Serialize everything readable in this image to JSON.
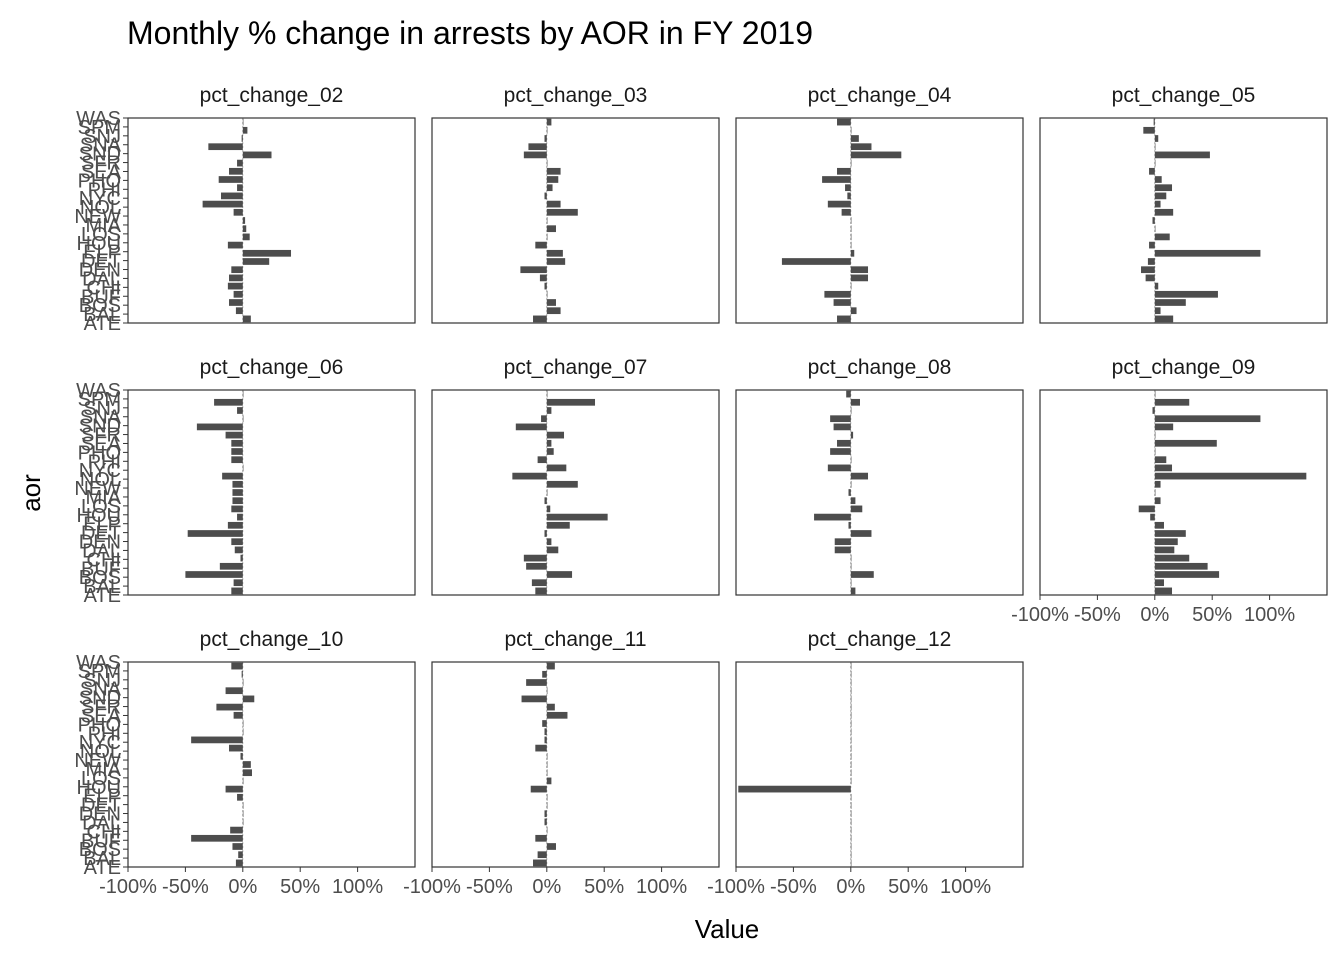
{
  "chart_data": {
    "type": "bar",
    "orientation": "horizontal",
    "title": "Monthly % change in arrests by AOR in FY 2019",
    "xlabel": "Value",
    "ylabel": "aor",
    "xlim": [
      -1.0,
      1.5
    ],
    "x_ticks": [
      -1,
      -0.5,
      0,
      0.5,
      1
    ],
    "x_tick_labels": [
      "-100%",
      "-50%",
      "0%",
      "50%",
      "100%"
    ],
    "bar_color": "#4d4d4d",
    "categories": [
      "ATL",
      "BAL",
      "BOS",
      "BUF",
      "CHI",
      "DAL",
      "DEN",
      "DET",
      "ELP",
      "HOU",
      "LOS",
      "MIA",
      "NEW",
      "NOL",
      "NYC",
      "PHI",
      "PHO",
      "SEA",
      "SFR",
      "SLC",
      "SNA",
      "SND",
      "SNJ",
      "SPM",
      "WAS"
    ],
    "y_tick_labels": [
      "WAS",
      "SPM",
      "SNJ",
      "SNA",
      "SND",
      "SLC",
      "SFR",
      "SEA",
      "PHO",
      "PHI",
      "NYC",
      "NOL",
      "NEW",
      "MIA",
      "LOS",
      "HOU",
      "ELP",
      "DET",
      "DEN",
      "DAL",
      "CHI",
      "BUF",
      "BOS",
      "BAL",
      "ATL"
    ],
    "y_tick_labels_drawn": [
      "WAS",
      "SPM",
      "SNJ",
      "SNA",
      "SND",
      "SFR",
      "SEA",
      "PHO",
      "PHI",
      "NYC",
      "NOL",
      "NEW",
      "MIA",
      "LOS",
      "HOU",
      "ELP",
      "DET",
      "DEN",
      "DAL",
      "CHI",
      "BUF",
      "BOS",
      "BAL",
      "ATE"
    ],
    "panels": [
      {
        "name": "pct_change_02",
        "values": [
          0.07,
          -0.06,
          -0.12,
          -0.08,
          -0.13,
          -0.12,
          -0.1,
          0.23,
          0.42,
          -0.13,
          0.06,
          0.03,
          0.02,
          -0.08,
          -0.35,
          -0.19,
          -0.05,
          -0.21,
          -0.12,
          -0.05,
          0.25,
          -0.3,
          -0.01,
          0.04,
          0.0
        ]
      },
      {
        "name": "pct_change_03",
        "values": [
          -0.12,
          0.12,
          0.08,
          0.0,
          -0.02,
          -0.06,
          -0.23,
          0.16,
          0.14,
          -0.1,
          0.0,
          0.08,
          0.0,
          0.27,
          0.12,
          -0.02,
          0.05,
          0.1,
          0.12,
          0.0,
          -0.2,
          -0.16,
          -0.02,
          0.0,
          0.04
        ]
      },
      {
        "name": "pct_change_04",
        "values": [
          -0.12,
          0.05,
          -0.15,
          -0.23,
          0.0,
          0.15,
          0.15,
          -0.6,
          0.03,
          0.0,
          0.0,
          0.0,
          0.0,
          -0.08,
          -0.2,
          -0.03,
          -0.05,
          -0.25,
          -0.12,
          0.0,
          0.44,
          0.18,
          0.07,
          0.0,
          -0.12
        ]
      },
      {
        "name": "pct_change_05",
        "values": [
          0.16,
          0.05,
          0.27,
          0.55,
          0.03,
          -0.08,
          -0.12,
          -0.06,
          0.92,
          -0.05,
          0.13,
          0.0,
          -0.02,
          0.16,
          0.05,
          0.1,
          0.15,
          0.06,
          -0.05,
          0.0,
          0.48,
          0.0,
          0.03,
          -0.1,
          -0.01
        ]
      },
      {
        "name": "pct_change_06",
        "values": [
          -0.1,
          -0.08,
          -0.5,
          -0.2,
          -0.02,
          -0.07,
          -0.1,
          -0.48,
          -0.13,
          -0.05,
          -0.1,
          -0.09,
          -0.09,
          -0.09,
          -0.18,
          0.0,
          -0.1,
          -0.1,
          -0.1,
          -0.15,
          -0.4,
          0.0,
          -0.05,
          -0.25,
          0.0
        ]
      },
      {
        "name": "pct_change_07",
        "values": [
          -0.1,
          -0.13,
          0.22,
          -0.18,
          -0.2,
          0.1,
          0.04,
          -0.02,
          0.2,
          0.53,
          0.03,
          -0.02,
          0.0,
          0.27,
          -0.3,
          0.17,
          -0.08,
          0.06,
          0.04,
          0.15,
          -0.27,
          -0.05,
          0.04,
          0.42,
          0.0
        ]
      },
      {
        "name": "pct_change_08",
        "values": [
          0.04,
          0.0,
          0.2,
          0.0,
          0.0,
          -0.14,
          -0.14,
          0.18,
          -0.02,
          -0.32,
          0.1,
          0.04,
          -0.02,
          0.0,
          0.15,
          -0.2,
          0.0,
          -0.18,
          -0.12,
          0.02,
          -0.15,
          -0.18,
          0.0,
          0.08,
          -0.04
        ]
      },
      {
        "name": "pct_change_09",
        "values": [
          0.15,
          0.08,
          0.56,
          0.46,
          0.3,
          0.17,
          0.2,
          0.27,
          0.08,
          -0.04,
          -0.14,
          0.05,
          0.0,
          0.05,
          1.32,
          0.15,
          0.1,
          0.0,
          0.54,
          0.0,
          0.16,
          0.92,
          -0.02,
          0.3,
          0.0
        ]
      },
      {
        "name": "pct_change_10",
        "values": [
          -0.06,
          -0.04,
          -0.09,
          -0.45,
          -0.11,
          0.0,
          0.0,
          0.0,
          -0.05,
          -0.15,
          0.0,
          0.08,
          0.07,
          -0.02,
          -0.12,
          -0.45,
          0.0,
          0.0,
          -0.08,
          -0.23,
          0.1,
          -0.15,
          0.0,
          -0.01,
          -0.1
        ]
      },
      {
        "name": "pct_change_11",
        "values": [
          -0.12,
          -0.08,
          0.08,
          -0.1,
          0.0,
          -0.02,
          -0.02,
          0.0,
          0.0,
          -0.14,
          0.04,
          0.0,
          0.0,
          0.0,
          -0.1,
          -0.02,
          -0.02,
          -0.04,
          0.18,
          0.07,
          -0.22,
          0.0,
          -0.18,
          -0.04,
          0.07
        ]
      },
      {
        "name": "pct_change_12",
        "values": [
          0,
          0,
          0,
          0,
          0,
          0,
          0,
          0,
          0,
          -0.98,
          0,
          0,
          0,
          0,
          0,
          0,
          0,
          0,
          0,
          0,
          0,
          0,
          0,
          0,
          0
        ]
      }
    ],
    "grid": false,
    "legend": "none",
    "facet_layout": "4 columns x 3 rows"
  }
}
